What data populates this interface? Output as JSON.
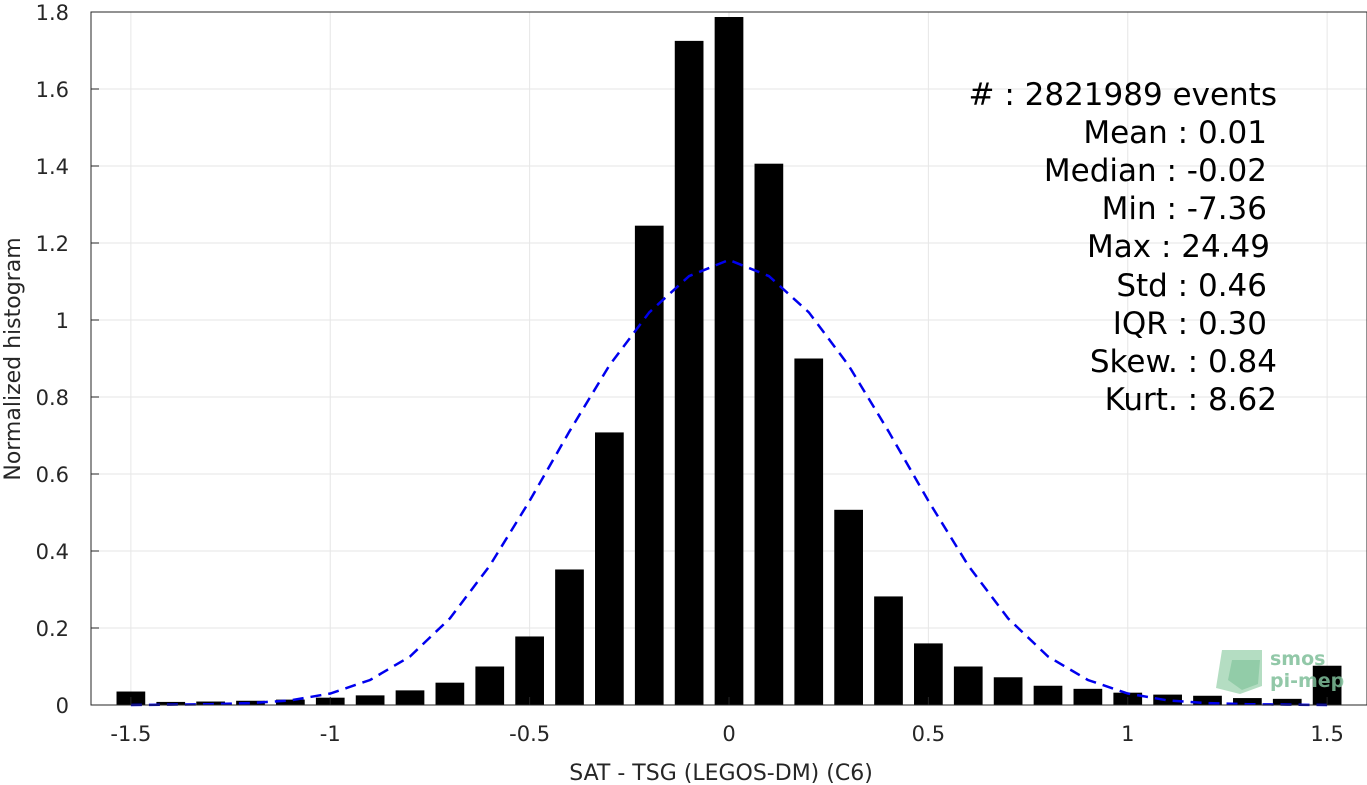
{
  "chart_data": {
    "type": "bar",
    "title": "",
    "xlabel": "SAT - TSG (LEGOS-DM) (C6)",
    "ylabel": "Normalized histogram",
    "xlim": [
      -1.6,
      1.6
    ],
    "ylim": [
      0,
      1.8
    ],
    "grid": true,
    "x_ticks": [
      -1.5,
      -1,
      -0.5,
      0,
      0.5,
      1,
      1.5
    ],
    "x_tick_labels": [
      "-1.5",
      "-1",
      "-0.5",
      "0",
      "0.5",
      "1",
      "1.5"
    ],
    "y_ticks": [
      0,
      0.2,
      0.4,
      0.6,
      0.8,
      1,
      1.2,
      1.4,
      1.6,
      1.8
    ],
    "y_tick_labels": [
      "0",
      "0.2",
      "0.4",
      "0.6",
      "0.8",
      "1",
      "1.2",
      "1.4",
      "1.6",
      "1.8"
    ],
    "bin_width": 0.1,
    "bar_color": "#000000",
    "series": [
      {
        "type": "bar",
        "x": [
          -1.5,
          -1.4,
          -1.3,
          -1.2,
          -1.1,
          -1.0,
          -0.9,
          -0.8,
          -0.7,
          -0.6,
          -0.5,
          -0.4,
          -0.3,
          -0.2,
          -0.1,
          0.0,
          0.1,
          0.2,
          0.3,
          0.4,
          0.5,
          0.6,
          0.7,
          0.8,
          0.9,
          1.0,
          1.1,
          1.2,
          1.3,
          1.4,
          1.5
        ],
        "values": [
          0.035,
          0.008,
          0.009,
          0.011,
          0.014,
          0.019,
          0.025,
          0.038,
          0.058,
          0.1,
          0.178,
          0.352,
          0.708,
          1.245,
          1.725,
          1.787,
          1.406,
          0.9,
          0.507,
          0.282,
          0.16,
          0.1,
          0.072,
          0.05,
          0.042,
          0.032,
          0.027,
          0.024,
          0.018,
          0.016,
          0.102
        ]
      },
      {
        "type": "line",
        "style": "dashed",
        "color": "#0000ee",
        "x": [
          -1.5,
          -1.4,
          -1.3,
          -1.2,
          -1.1,
          -1.0,
          -0.9,
          -0.8,
          -0.7,
          -0.6,
          -0.5,
          -0.4,
          -0.3,
          -0.2,
          -0.1,
          0.0,
          0.1,
          0.2,
          0.3,
          0.4,
          0.5,
          0.6,
          0.7,
          0.8,
          0.9,
          1.0,
          1.1,
          1.2,
          1.3,
          1.4,
          1.5
        ],
        "values": [
          0.0,
          0.001,
          0.002,
          0.005,
          0.012,
          0.03,
          0.065,
          0.126,
          0.225,
          0.362,
          0.53,
          0.711,
          0.882,
          1.02,
          1.114,
          1.156,
          1.114,
          1.02,
          0.882,
          0.711,
          0.53,
          0.362,
          0.225,
          0.126,
          0.065,
          0.03,
          0.012,
          0.005,
          0.002,
          0.001,
          0.0
        ]
      }
    ],
    "annotations": [
      "#  : 2821989 events",
      "Mean : 0.01",
      "Median : -0.02",
      "Min : -7.36",
      "Max : 24.49",
      "Std : 0.46",
      "IQR : 0.30",
      "Skew. : 0.84",
      "Kurt. : 8.62"
    ],
    "logo": [
      "smos",
      "pi-mep"
    ]
  }
}
